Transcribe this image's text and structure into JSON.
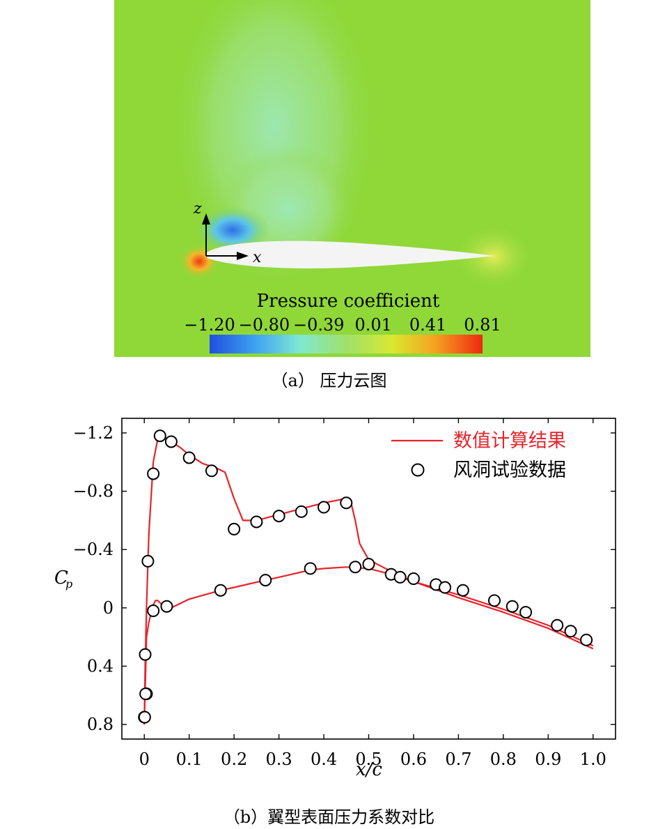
{
  "panel_a": {
    "axis_z": "z",
    "axis_x": "x",
    "colorbar_title": "Pressure coefficient",
    "colorbar_ticks": [
      "−1.20",
      "−0.80",
      "−0.39",
      "0.01",
      "0.41",
      "0.81"
    ],
    "colormap": [
      "#1f4fe0",
      "#3fa3f0",
      "#7fe8d2",
      "#9fe06a",
      "#d8e830",
      "#f5a020",
      "#ee2810"
    ],
    "background_color": "#8fd838",
    "caption": "（a） 压力云图"
  },
  "chart_data": {
    "type": "line",
    "xlabel": "x/c",
    "ylabel": "Cp",
    "xlim": [
      -0.05,
      1.05
    ],
    "ylim": [
      0.9,
      -1.3
    ],
    "y_inverted": true,
    "xticks": [
      0,
      0.1,
      0.2,
      0.3,
      0.4,
      0.5,
      0.6,
      0.7,
      0.8,
      0.9,
      1.0
    ],
    "xtick_labels": [
      "0",
      "0.1",
      "0.2",
      "0.3",
      "0.4",
      "0.5",
      "0.6",
      "0.7",
      "0.8",
      "0.9",
      "1.0"
    ],
    "yticks": [
      -1.2,
      -0.8,
      -0.4,
      0,
      0.4,
      0.8
    ],
    "ytick_labels": [
      "−1.2",
      "−0.8",
      "−0.4",
      "0",
      "0.4",
      "0.8"
    ],
    "legend_position": "top-right",
    "series": [
      {
        "name": "数值计算结果",
        "type": "line",
        "color": "#e8222a",
        "x": [
          0.0,
          0.002,
          0.005,
          0.01,
          0.02,
          0.03,
          0.04,
          0.05,
          0.08,
          0.1,
          0.13,
          0.16,
          0.18,
          0.2,
          0.22,
          0.25,
          0.3,
          0.35,
          0.4,
          0.45,
          0.46,
          0.47,
          0.48,
          0.5,
          0.55,
          0.6,
          0.7,
          0.8,
          0.9,
          1.0
        ],
        "y": [
          0.8,
          0.4,
          0.0,
          -0.5,
          -1.0,
          -1.16,
          -1.18,
          -1.16,
          -1.1,
          -1.05,
          -0.99,
          -0.96,
          -0.93,
          -0.75,
          -0.6,
          -0.6,
          -0.64,
          -0.68,
          -0.72,
          -0.75,
          -0.73,
          -0.6,
          -0.44,
          -0.33,
          -0.25,
          -0.18,
          -0.07,
          0.03,
          0.14,
          0.28
        ]
      },
      {
        "name": "",
        "type": "line",
        "color": "#e8222a",
        "x": [
          0.0,
          0.005,
          0.01,
          0.02,
          0.025,
          0.03,
          0.04,
          0.06,
          0.1,
          0.17,
          0.2,
          0.27,
          0.3,
          0.37,
          0.4,
          0.45,
          0.5,
          0.55,
          0.6,
          0.7,
          0.8,
          0.9,
          1.0
        ],
        "y": [
          0.8,
          0.2,
          0.1,
          -0.02,
          -0.05,
          -0.05,
          -0.02,
          0.0,
          -0.06,
          -0.12,
          -0.14,
          -0.19,
          -0.21,
          -0.26,
          -0.27,
          -0.28,
          -0.27,
          -0.23,
          -0.18,
          -0.09,
          0.01,
          0.12,
          0.26
        ]
      },
      {
        "name": "风洞试验数据",
        "type": "scatter",
        "marker": "open-circle",
        "x": [
          0.0,
          0.002,
          0.005,
          0.008,
          0.02,
          0.035,
          0.06,
          0.1,
          0.15,
          0.2,
          0.25,
          0.3,
          0.35,
          0.4,
          0.45,
          0.5,
          0.55,
          0.57,
          0.6,
          0.65,
          0.67,
          0.71,
          0.78,
          0.82,
          0.85,
          0.92,
          0.95,
          0.985,
          0.001,
          0.003,
          0.02,
          0.05,
          0.17,
          0.27,
          0.37,
          0.47
        ],
        "y": [
          0.75,
          0.32,
          0.59,
          -0.32,
          -0.92,
          -1.18,
          -1.14,
          -1.03,
          -0.94,
          -0.54,
          -0.59,
          -0.63,
          -0.66,
          -0.69,
          -0.72,
          -0.3,
          -0.23,
          -0.21,
          -0.2,
          -0.16,
          -0.14,
          -0.12,
          -0.05,
          -0.01,
          0.03,
          0.12,
          0.16,
          0.22,
          0.75,
          0.59,
          0.02,
          -0.01,
          -0.12,
          -0.19,
          -0.27,
          -0.28
        ]
      }
    ]
  },
  "caption_b": "（b）翼型表面压力系数对比"
}
